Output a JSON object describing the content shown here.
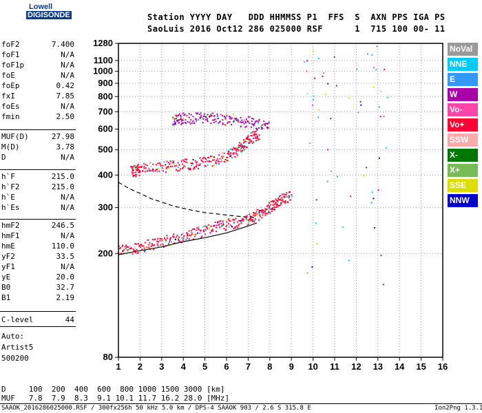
{
  "logo": {
    "line1": "Lowell",
    "line2": "DIGISONDE"
  },
  "header": {
    "line1": "Station YYYY DAY   DDD HHMMSS P1  FFS  S  AXN PPS IGA PS",
    "line2": "SaoLuis 2016 Oct12 286 025000 RSF      1  715 100 00- 11"
  },
  "params_group1": [
    {
      "k": "foF2",
      "v": "7.400"
    },
    {
      "k": "foF1",
      "v": "N/A"
    },
    {
      "k": "foF1p",
      "v": "N/A"
    },
    {
      "k": "foE",
      "v": "N/A"
    },
    {
      "k": "foEp",
      "v": "0.42"
    },
    {
      "k": "fxI",
      "v": "7.85"
    },
    {
      "k": "foEs",
      "v": "N/A"
    },
    {
      "k": "fmin",
      "v": "2.50"
    }
  ],
  "params_group2": [
    {
      "k": "MUF(D)",
      "v": "27.98"
    },
    {
      "k": "M(D)",
      "v": "3.78"
    },
    {
      "k": "D",
      "v": "N/A"
    }
  ],
  "params_group3": [
    {
      "k": "h`F",
      "v": "215.0"
    },
    {
      "k": "h`F2",
      "v": "215.0"
    },
    {
      "k": "h`E",
      "v": "N/A"
    },
    {
      "k": "h`Es",
      "v": "N/A"
    }
  ],
  "params_group4": [
    {
      "k": "hmF2",
      "v": "246.5"
    },
    {
      "k": "hmF1",
      "v": "N/A"
    },
    {
      "k": "hmE",
      "v": "110.0"
    },
    {
      "k": "yF2",
      "v": "33.5"
    },
    {
      "k": "yF1",
      "v": "N/A"
    },
    {
      "k": "yE",
      "v": "20.0"
    },
    {
      "k": "B0",
      "v": "32.7"
    },
    {
      "k": "B1",
      "v": "2.19"
    }
  ],
  "params_group5": [
    {
      "k": "C-level",
      "v": "44"
    }
  ],
  "autoscale": {
    "line1": "Auto:",
    "line2": "Artist5",
    "line3": "500200"
  },
  "legend": [
    {
      "label": "NoVal",
      "color": "#999999"
    },
    {
      "label": "NNE",
      "color": "#00ccff"
    },
    {
      "label": "E",
      "color": "#3399ff"
    },
    {
      "label": "W",
      "color": "#aa00aa"
    },
    {
      "label": "Vo-",
      "color": "#ff44aa"
    },
    {
      "label": "Vo+",
      "color": "#ff0033"
    },
    {
      "label": "SSW",
      "color": "#ffaaaa"
    },
    {
      "label": "X-",
      "color": "#007700"
    },
    {
      "label": "X+",
      "color": "#77bb55"
    },
    {
      "label": "SSE",
      "color": "#dddd00"
    },
    {
      "label": "NNW",
      "color": "#0000cc"
    }
  ],
  "bottom": {
    "d_line": "D     100  200  400  600  800 1000 1500 3000 [km]",
    "muf_line": "MUF   7.8  7.9  8.3  9.1 10.1 11.7 16.2 28.0 [MHz]",
    "footer_left": "SAAOK_2016286025000.RSF / 300fx256h 50 kHz 5.0 km / DPS-4 SAAOK 903 / 2.6 S 315.8 E",
    "footer_right": "Ion2Png 1.3.17"
  },
  "chart_data": {
    "type": "scatter",
    "title": "",
    "xlabel": "",
    "ylabel": "",
    "xlim": [
      1,
      16
    ],
    "ylim": [
      80,
      1280
    ],
    "x_ticks": [
      1,
      2,
      3,
      4,
      5,
      6,
      7,
      8,
      9,
      10,
      11,
      12,
      13,
      14,
      15,
      16
    ],
    "y_ticks": [
      80,
      200,
      300,
      400,
      500,
      600,
      700,
      800,
      900,
      1000,
      1100,
      1280
    ],
    "y_scale": "log",
    "grid": true,
    "legend_placement": "right",
    "trace_profile": {
      "name": "Vo+",
      "x": [
        1.0,
        2.0,
        3.0,
        4.0,
        5.0,
        6.0,
        7.0,
        7.4
      ],
      "y": [
        198,
        205,
        212,
        222,
        230,
        240,
        255,
        262
      ]
    },
    "profile_dashed": {
      "x": [
        1.0,
        1.5,
        2.0,
        2.5,
        3.0,
        3.5,
        4.0,
        4.5,
        5.0,
        5.5,
        6.0,
        6.5,
        7.0,
        7.3
      ],
      "y": [
        375,
        355,
        340,
        325,
        315,
        305,
        298,
        292,
        287,
        284,
        281,
        278,
        276,
        275
      ]
    },
    "traces": [
      {
        "name": "Vo+",
        "x": [
          1.0,
          2.0,
          3.0,
          4.0,
          5.0,
          6.0,
          7.0,
          7.5,
          8.0,
          8.5,
          9.0
        ],
        "y": [
          205,
          212,
          220,
          232,
          245,
          258,
          270,
          282,
          300,
          320,
          335
        ]
      },
      {
        "name": "Vo+",
        "x": [
          1.6,
          2.0,
          3.0,
          4.0,
          5.0,
          6.0,
          6.5,
          7.0,
          7.5
        ],
        "y": [
          410,
          420,
          430,
          438,
          448,
          470,
          500,
          540,
          580
        ]
      },
      {
        "name": "W",
        "x": [
          3.5,
          4.0,
          5.0,
          6.0,
          7.0,
          8.0
        ],
        "y": [
          640,
          660,
          660,
          655,
          640,
          610
        ]
      }
    ]
  }
}
